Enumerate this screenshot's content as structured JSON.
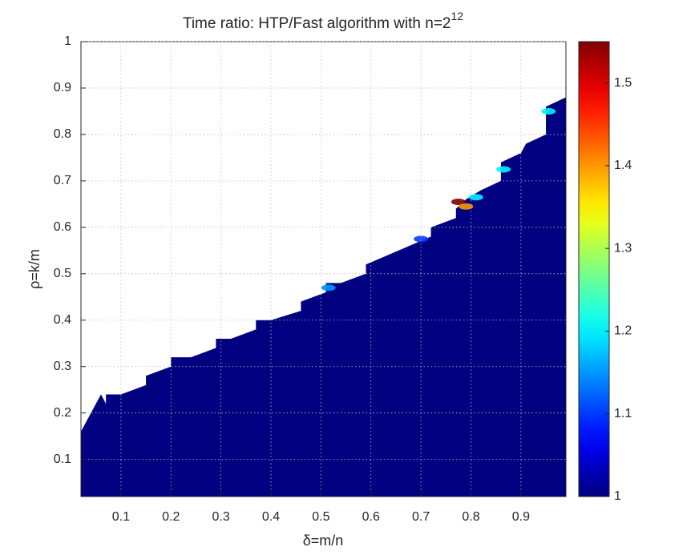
{
  "chart_data": {
    "type": "contour",
    "title": "Time ratio: HTP/Fast algorithm with n=2",
    "title_superscript": "12",
    "xlabel": "δ=m/n",
    "ylabel": "ρ=k/m",
    "xlim": [
      0.02,
      0.99
    ],
    "ylim": [
      0.02,
      1
    ],
    "xticks": [
      0.1,
      0.2,
      0.3,
      0.4,
      0.5,
      0.6,
      0.7,
      0.8,
      0.9
    ],
    "yticks": [
      0.1,
      0.2,
      0.3,
      0.4,
      0.5,
      0.6,
      0.7,
      0.8,
      0.9,
      1
    ],
    "grid": true,
    "colormap": "jet",
    "clim": [
      1,
      1.55
    ],
    "cticks": [
      1,
      1.1,
      1.2,
      1.3,
      1.4,
      1.5
    ],
    "region": {
      "value": 1,
      "x": [
        0.02,
        0.99,
        0.99,
        0.95,
        0.95,
        0.91,
        0.9,
        0.86,
        0.86,
        0.82,
        0.79,
        0.77,
        0.77,
        0.72,
        0.72,
        0.59,
        0.59,
        0.54,
        0.51,
        0.51,
        0.46,
        0.46,
        0.4,
        0.37,
        0.37,
        0.32,
        0.29,
        0.29,
        0.24,
        0.2,
        0.2,
        0.15,
        0.15,
        0.1,
        0.07,
        0.07,
        0.06,
        0.04,
        0.02
      ],
      "y": [
        0.02,
        0.02,
        0.88,
        0.86,
        0.8,
        0.78,
        0.76,
        0.74,
        0.7,
        0.68,
        0.66,
        0.64,
        0.62,
        0.6,
        0.58,
        0.52,
        0.5,
        0.48,
        0.48,
        0.46,
        0.44,
        0.42,
        0.4,
        0.4,
        0.38,
        0.36,
        0.36,
        0.34,
        0.32,
        0.32,
        0.3,
        0.28,
        0.26,
        0.24,
        0.24,
        0.22,
        0.24,
        0.2,
        0.16
      ]
    },
    "hotspots": {
      "x": [
        0.775,
        0.79,
        0.81,
        0.865,
        0.955,
        0.515,
        0.7
      ],
      "y": [
        0.66,
        0.65,
        0.67,
        0.73,
        0.855,
        0.475,
        0.58
      ],
      "values": [
        1.55,
        1.4,
        1.2,
        1.2,
        1.2,
        1.15,
        1.1
      ]
    }
  }
}
